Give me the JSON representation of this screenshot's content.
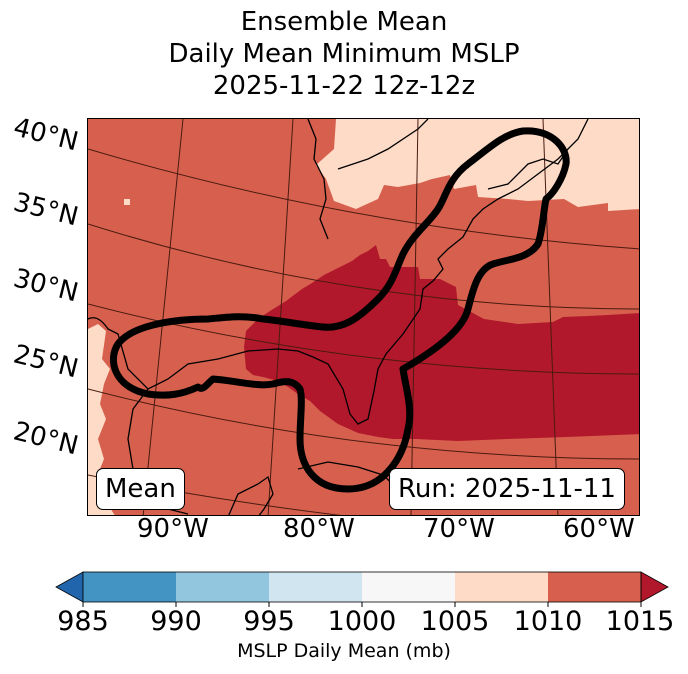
{
  "title": {
    "line1": "Ensemble Mean",
    "line2": "Daily Mean Minimum MSLP",
    "line3": "2025-11-22 12z-12z"
  },
  "map": {
    "lat_labels": [
      "40°N",
      "35°N",
      "30°N",
      "25°N",
      "20°N"
    ],
    "lon_labels": [
      "90°W",
      "80°W",
      "70°W",
      "60°W"
    ],
    "legend_box_left": "Mean",
    "legend_box_right": "Run: 2025-11-11",
    "contour_description": "Thick black contour enclosing Gulf of Mexico, Florida/Southeast US and US East Coast to Nova Scotia",
    "fill_colors": {
      "1005-1010": "#fddbc7",
      "1010-1015": "#d6604d",
      "above-1015": "#b2182b"
    }
  },
  "colorbar": {
    "label": "MSLP Daily Mean (mb)",
    "ticks": [
      "985",
      "990",
      "995",
      "1000",
      "1005",
      "1010",
      "1015"
    ],
    "extend": "both",
    "under_color": "#2166ac",
    "over_color": "#b2182b",
    "bins": [
      {
        "range": "985-990",
        "color": "#4393c3"
      },
      {
        "range": "990-995",
        "color": "#92c5de"
      },
      {
        "range": "995-1000",
        "color": "#d1e5f0"
      },
      {
        "range": "1000-1005",
        "color": "#f7f7f7"
      },
      {
        "range": "1005-1010",
        "color": "#fddbc7"
      },
      {
        "range": "1010-1015",
        "color": "#d6604d"
      }
    ]
  }
}
